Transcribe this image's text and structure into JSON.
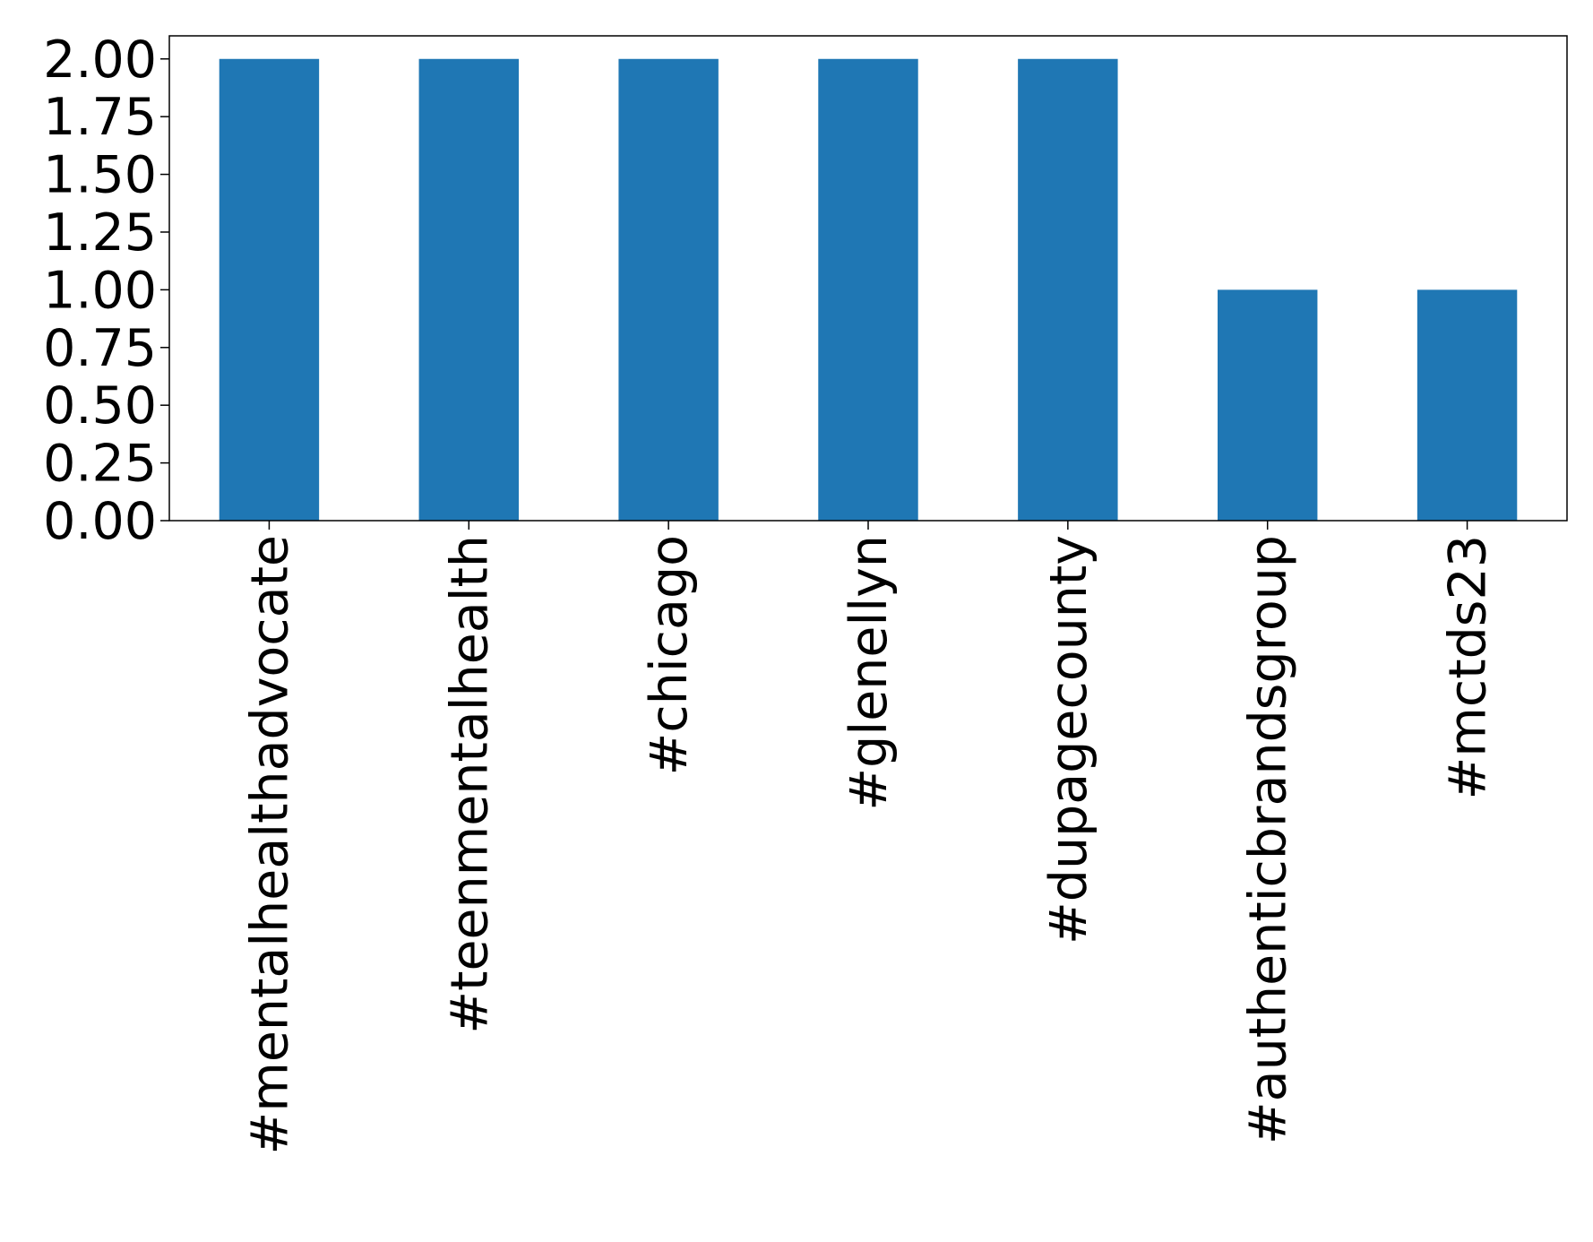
{
  "chart_data": {
    "type": "bar",
    "categories": [
      "#mentalhealthadvocate",
      "#teenmentalhealth",
      "#chicago",
      "#glenellyn",
      "#dupagecounty",
      "#authenticbrandsgroup",
      "#mctds23"
    ],
    "values": [
      2,
      2,
      2,
      2,
      2,
      1,
      1
    ],
    "color": "#1f77b4",
    "ylim": [
      0,
      2.1
    ],
    "yticks": [
      {
        "value": 0,
        "label": "0.00"
      },
      {
        "value": 0.25,
        "label": "0.25"
      },
      {
        "value": 0.5,
        "label": "0.50"
      },
      {
        "value": 0.75,
        "label": "0.75"
      },
      {
        "value": 1,
        "label": "1.00"
      },
      {
        "value": 1.25,
        "label": "1.25"
      },
      {
        "value": 1.5,
        "label": "1.50"
      },
      {
        "value": 1.75,
        "label": "1.75"
      },
      {
        "value": 2,
        "label": "2.00"
      }
    ],
    "grid": false
  }
}
